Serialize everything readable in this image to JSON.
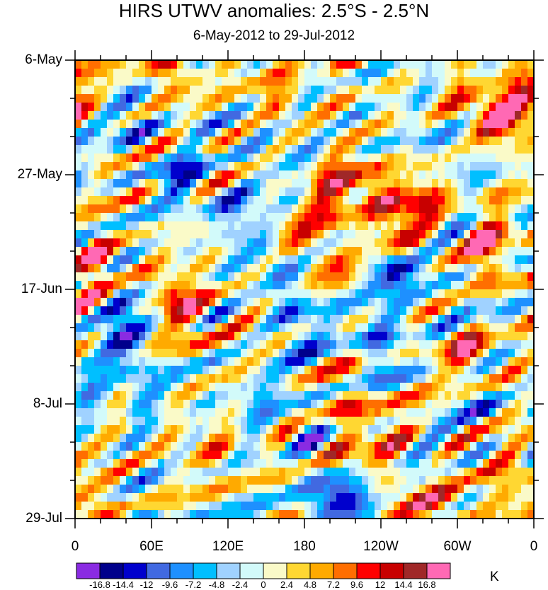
{
  "chart_data": {
    "type": "heatmap",
    "title": "HIRS UTWV anomalies: 2.5°S - 2.5°N",
    "subtitle": "6-May-2012 to 29-Jul-2012",
    "x_ticks": [
      "0",
      "60E",
      "120E",
      "180",
      "120W",
      "60W",
      "0"
    ],
    "x_range_deg": [
      0,
      360
    ],
    "y_ticks": [
      "6-May",
      "27-May",
      "17-Jun",
      "8-Jul",
      "29-Jul"
    ],
    "y_range_days": [
      0,
      84
    ],
    "colorbar": {
      "levels": [
        "-16.8",
        "-14.4",
        "-12",
        "-9.6",
        "-7.2",
        "-4.8",
        "-2.4",
        "0",
        "2.4",
        "4.8",
        "7.2",
        "9.6",
        "12",
        "14.4",
        "16.8"
      ],
      "colors": [
        "#8a2be2",
        "#00008b",
        "#0000cd",
        "#4169e1",
        "#1e90ff",
        "#00bfff",
        "#a0d2ff",
        "#d2fafa",
        "#fafac8",
        "#ffd732",
        "#ffaa00",
        "#ff6e00",
        "#ff0000",
        "#c80000",
        "#a02828",
        "#ff69b4"
      ],
      "units": "K"
    },
    "features": [
      {
        "lon": 20,
        "day": 40,
        "value": 11
      },
      {
        "lon": 70,
        "day": 2,
        "value": 8
      },
      {
        "lon": 75,
        "day": 42,
        "value": 11
      },
      {
        "lon": 95,
        "day": 49,
        "value": 7
      },
      {
        "lon": 155,
        "day": 6,
        "value": 5
      },
      {
        "lon": 170,
        "day": 32,
        "value": 8
      },
      {
        "lon": 205,
        "day": 28,
        "value": 9
      },
      {
        "lon": 230,
        "day": 23,
        "value": 11
      },
      {
        "lon": 255,
        "day": 33,
        "value": 12
      },
      {
        "lon": 210,
        "day": 40,
        "value": 10
      },
      {
        "lon": 270,
        "day": 27,
        "value": 9
      },
      {
        "lon": 330,
        "day": 10,
        "value": 15
      },
      {
        "lon": 355,
        "day": 4,
        "value": 8
      },
      {
        "lon": 325,
        "day": 35,
        "value": 11
      },
      {
        "lon": 310,
        "day": 54,
        "value": 10
      },
      {
        "lon": 275,
        "day": 82,
        "value": 11
      },
      {
        "lon": 225,
        "day": 65,
        "value": 8
      },
      {
        "lon": 200,
        "day": 72,
        "value": 7
      },
      {
        "lon": 350,
        "day": 78,
        "value": 7
      },
      {
        "lon": 110,
        "day": 72,
        "value": 5
      },
      {
        "lon": 40,
        "day": 10,
        "value": -6
      },
      {
        "lon": 75,
        "day": 20,
        "value": -8
      },
      {
        "lon": 115,
        "day": 26,
        "value": -7
      },
      {
        "lon": 155,
        "day": 36,
        "value": -7
      },
      {
        "lon": 250,
        "day": 38,
        "value": -12
      },
      {
        "lon": 225,
        "day": 46,
        "value": -8
      },
      {
        "lon": 45,
        "day": 56,
        "value": -9
      },
      {
        "lon": 35,
        "day": 47,
        "value": -12
      },
      {
        "lon": 175,
        "day": 48,
        "value": -9
      },
      {
        "lon": 185,
        "day": 69,
        "value": -11
      },
      {
        "lon": 210,
        "day": 81,
        "value": -14
      },
      {
        "lon": 240,
        "day": 56,
        "value": -6
      },
      {
        "lon": 310,
        "day": 44,
        "value": -4
      },
      {
        "lon": 140,
        "day": 14,
        "value": -6
      },
      {
        "lon": 290,
        "day": 15,
        "value": -6
      },
      {
        "lon": 320,
        "day": 64,
        "value": -5
      },
      {
        "lon": 10,
        "day": 62,
        "value": -5
      },
      {
        "lon": 130,
        "day": 60,
        "value": -4
      }
    ]
  }
}
